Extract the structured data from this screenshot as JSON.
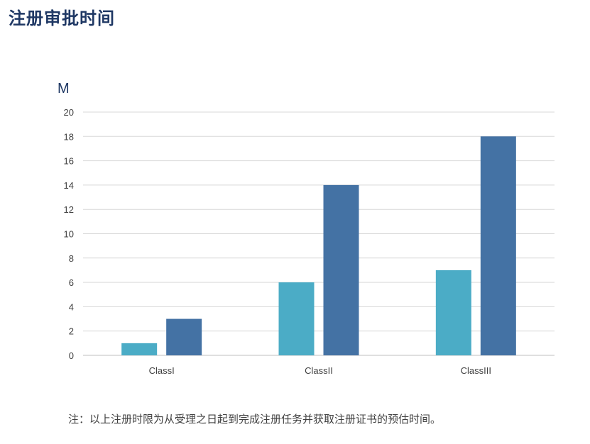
{
  "title": "注册审批时间",
  "footnote": "注：以上注册时限为从受理之日起到完成注册任务并获取注册证书的预估时间。",
  "chart_data": {
    "type": "bar",
    "unit_label": "M",
    "categories": [
      "ClassI",
      "ClassII",
      "ClassIII"
    ],
    "series": [
      {
        "color": "#4bacc6",
        "values": [
          1,
          6,
          7
        ]
      },
      {
        "color": "#4472a4",
        "values": [
          3,
          14,
          18
        ]
      }
    ],
    "ylim": [
      0,
      20
    ],
    "yticks": [
      0,
      2,
      4,
      6,
      8,
      10,
      12,
      14,
      16,
      18,
      20
    ],
    "grid": true,
    "legend": "none"
  }
}
